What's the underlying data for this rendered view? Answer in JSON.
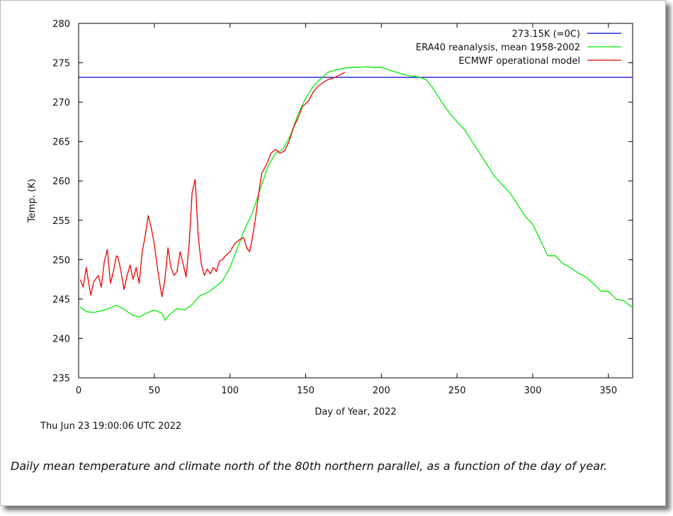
{
  "chart_data": {
    "type": "line",
    "title": "",
    "xlabel": "Day of Year, 2022",
    "ylabel": "Temp. (K)",
    "xlim": [
      0,
      366
    ],
    "ylim": [
      235,
      280
    ],
    "xticks": [
      0,
      50,
      100,
      150,
      200,
      250,
      300,
      350
    ],
    "yticks": [
      235,
      240,
      245,
      250,
      255,
      260,
      265,
      270,
      275,
      280
    ],
    "grid": false,
    "legend_position": "top-right",
    "series": [
      {
        "name": "273.15K (=0C)",
        "color": "#0000cc",
        "x": [
          0,
          366
        ],
        "y": [
          273.15,
          273.15
        ]
      },
      {
        "name": "ERA40 reanalysis, mean 1958-2002",
        "color": "#00ee00",
        "x": [
          1,
          5,
          10,
          15,
          20,
          25,
          30,
          35,
          40,
          45,
          50,
          55,
          57,
          60,
          65,
          70,
          75,
          80,
          85,
          90,
          95,
          100,
          105,
          110,
          115,
          120,
          125,
          130,
          135,
          140,
          145,
          150,
          155,
          160,
          165,
          170,
          175,
          180,
          185,
          190,
          195,
          200,
          205,
          210,
          215,
          220,
          225,
          230,
          235,
          240,
          245,
          250,
          255,
          260,
          265,
          270,
          275,
          280,
          285,
          290,
          295,
          300,
          305,
          310,
          315,
          320,
          325,
          330,
          335,
          340,
          345,
          350,
          355,
          360,
          366
        ],
        "y": [
          244.0,
          243.4,
          243.3,
          243.5,
          243.8,
          244.2,
          243.7,
          243.0,
          242.7,
          243.2,
          243.6,
          243.2,
          242.3,
          243.0,
          243.8,
          243.6,
          244.3,
          245.4,
          245.8,
          246.5,
          247.3,
          249.0,
          251.5,
          254.0,
          256.0,
          259.0,
          261.8,
          263.5,
          264.0,
          265.8,
          268.5,
          270.5,
          272.0,
          273.0,
          273.8,
          274.1,
          274.3,
          274.4,
          274.4,
          274.5,
          274.4,
          274.4,
          274.1,
          273.8,
          273.5,
          273.3,
          273.2,
          272.8,
          271.5,
          270.0,
          268.6,
          267.5,
          266.5,
          265.0,
          263.5,
          262.0,
          260.5,
          259.5,
          258.5,
          257.0,
          255.5,
          254.5,
          252.5,
          250.5,
          250.5,
          249.5,
          249.0,
          248.3,
          247.8,
          247.0,
          246.0,
          246.0,
          245.0,
          244.8,
          243.9
        ]
      },
      {
        "name": "ECMWF operational model",
        "color": "#ee0000",
        "x": [
          1,
          3,
          5,
          8,
          10,
          13,
          15,
          17,
          19,
          21,
          23,
          25,
          26,
          28,
          30,
          32,
          34,
          36,
          38,
          40,
          42,
          44,
          46,
          48,
          50,
          52,
          54,
          55,
          57,
          59,
          61,
          63,
          65,
          67,
          69,
          71,
          73,
          75,
          77,
          79,
          81,
          83,
          85,
          87,
          89,
          91,
          93,
          95,
          97,
          100,
          103,
          106,
          109,
          111,
          113,
          115,
          117,
          119,
          121,
          124,
          127,
          130,
          133,
          136,
          139,
          142,
          145,
          148,
          150,
          152,
          155,
          158,
          161,
          164,
          167,
          170,
          173,
          176
        ],
        "y": [
          247.5,
          246.5,
          249.0,
          245.5,
          247.2,
          248.0,
          246.5,
          249.8,
          251.3,
          247.0,
          248.5,
          250.5,
          250.3,
          248.5,
          246.2,
          248.0,
          249.3,
          247.5,
          249.0,
          247.0,
          251.0,
          253.0,
          255.6,
          254.0,
          252.0,
          249.0,
          246.5,
          245.3,
          247.5,
          251.5,
          249.0,
          248.0,
          248.5,
          251.0,
          249.5,
          247.8,
          252.0,
          258.5,
          260.2,
          253.0,
          249.5,
          248.0,
          248.8,
          248.2,
          249.0,
          248.5,
          249.8,
          250.0,
          250.5,
          251.0,
          252.0,
          252.5,
          252.8,
          251.5,
          251.0,
          253.0,
          255.5,
          258.5,
          261.0,
          262.0,
          263.5,
          264.0,
          263.5,
          263.8,
          265.0,
          266.8,
          268.0,
          269.5,
          269.8,
          270.2,
          271.3,
          272.0,
          272.4,
          272.8,
          273.0,
          273.2,
          273.5,
          273.8
        ]
      }
    ]
  },
  "footer": {
    "timestamp": "Thu Jun 23 19:00:06 UTC 2022",
    "caption": "Daily mean temperature and climate north of the 80th northern parallel, as a function of the day of year."
  }
}
